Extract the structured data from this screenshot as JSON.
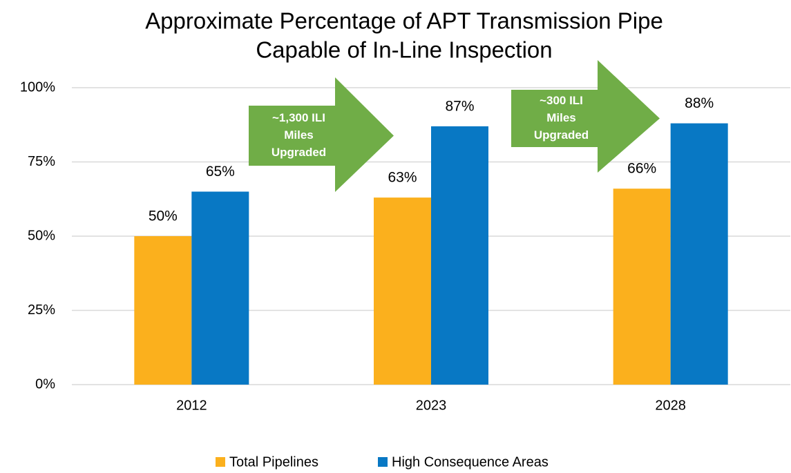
{
  "chart_data": {
    "type": "bar",
    "title": [
      "Approximate Percentage of APT Transmission Pipe",
      "Capable of In-Line Inspection"
    ],
    "categories": [
      "2012",
      "2023",
      "2028"
    ],
    "series": [
      {
        "name": "Total Pipelines",
        "color": "#fbb01d",
        "values": [
          50,
          63,
          66
        ],
        "value_labels": [
          "50%",
          "63%",
          "66%"
        ]
      },
      {
        "name": "High Consequence Areas",
        "color": "#0878c4",
        "values": [
          65,
          87,
          88
        ],
        "value_labels": [
          "65%",
          "87%",
          "88%"
        ]
      }
    ],
    "ylim": [
      0,
      100
    ],
    "yticks": [
      {
        "value": 0,
        "label": "0%"
      },
      {
        "value": 25,
        "label": "25%"
      },
      {
        "value": 50,
        "label": "50%"
      },
      {
        "value": 75,
        "label": "75%"
      },
      {
        "value": 100,
        "label": "100%"
      }
    ],
    "grid": true,
    "legend": "bottom",
    "annotations": [
      {
        "text": [
          "~1,300 ILI",
          "Miles",
          "Upgraded"
        ],
        "color": "#70ad47"
      },
      {
        "text": [
          "~300 ILI",
          "Miles",
          "Upgraded"
        ],
        "color": "#70ad47"
      }
    ]
  }
}
